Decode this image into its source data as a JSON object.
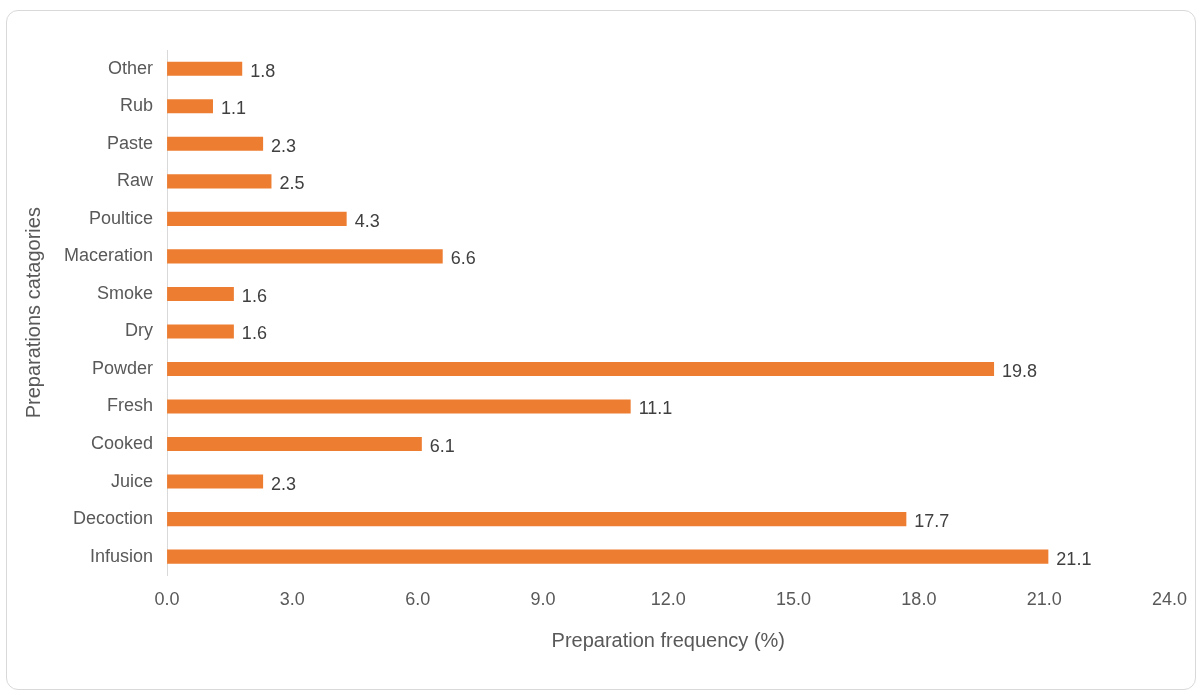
{
  "chart_data": {
    "type": "bar",
    "orientation": "horizontal",
    "xlabel": "Preparation frequency (%)",
    "ylabel": "Preparations catagories",
    "categories": [
      "Other",
      "Rub",
      "Paste",
      "Raw",
      "Poultice",
      "Maceration",
      "Smoke",
      "Dry",
      "Powder",
      "Fresh",
      "Cooked",
      "Juice",
      "Decoction",
      "Infusion"
    ],
    "values": [
      1.8,
      1.1,
      2.3,
      2.5,
      4.3,
      6.6,
      1.6,
      1.6,
      19.8,
      11.1,
      6.1,
      2.3,
      17.7,
      21.1
    ],
    "color": "#ed7d31",
    "xlim": [
      0,
      24
    ],
    "xticks": [
      {
        "value": 0,
        "label": "0.0"
      },
      {
        "value": 3,
        "label": "3.0"
      },
      {
        "value": 6,
        "label": "6.0"
      },
      {
        "value": 9,
        "label": "9.0"
      },
      {
        "value": 12,
        "label": "12.0"
      },
      {
        "value": 15,
        "label": "15.0"
      },
      {
        "value": 18,
        "label": "18.0"
      },
      {
        "value": 21,
        "label": "21.0"
      },
      {
        "value": 24,
        "label": "24.0"
      }
    ],
    "data_labels": true,
    "grid": false,
    "legend": false
  }
}
